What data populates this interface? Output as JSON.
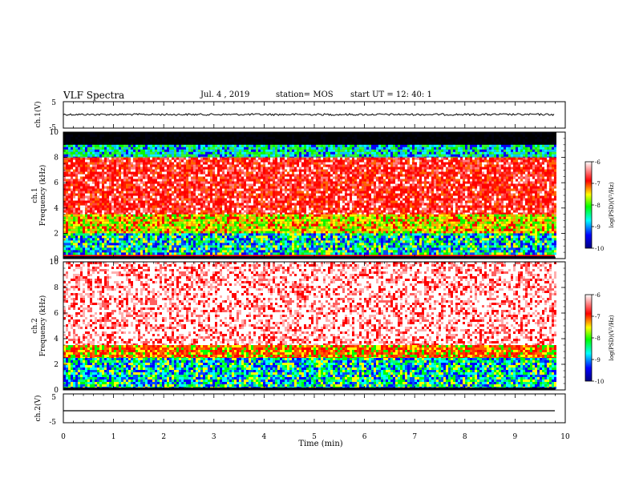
{
  "header": {
    "title": "VLF Spectra",
    "date": "Jul. 4 , 2019",
    "station": "station= MOS",
    "start": "start UT = 12: 40: 1"
  },
  "chart_data": [
    {
      "type": "line",
      "ylabel": "ch.1(V)",
      "ylim": [
        -5,
        5
      ],
      "yticklabels": [
        "5",
        "-5"
      ],
      "baseline": -1.2,
      "description_values": {
        "x_range_min": [
          0,
          9.85
        ]
      }
    },
    {
      "type": "heatmap",
      "ylabel_line1": "ch.1",
      "ylabel_line2": "Frequency (kHz)",
      "ylim": [
        0,
        10
      ],
      "yticklabels": [
        "0",
        "2",
        "4",
        "6",
        "8",
        "10"
      ],
      "colorbar": {
        "label": "log(PSD)(V²/Hz)",
        "range": [
          -10,
          -6
        ],
        "ticklabels": [
          "-6",
          "-7",
          "-8",
          "-9",
          "-10"
        ]
      },
      "bands_khz": [
        {
          "from": 9.0,
          "to": 10.0,
          "level": "black"
        },
        {
          "from": 8.0,
          "to": 9.0,
          "level": "blue-green"
        },
        {
          "from": 3.5,
          "to": 8.0,
          "level": "red"
        },
        {
          "from": 2.0,
          "to": 3.5,
          "level": "yellow-green"
        },
        {
          "from": 0.3,
          "to": 2.0,
          "level": "green-blue"
        }
      ]
    },
    {
      "type": "heatmap",
      "ylabel_line1": "ch.2",
      "ylabel_line2": "Frequency (kHz)",
      "ylim": [
        0,
        10
      ],
      "yticklabels": [
        "0",
        "2",
        "4",
        "6",
        "8",
        "10"
      ],
      "colorbar": {
        "label": "log(PSD)(V²/Hz)",
        "range": [
          -10,
          -6
        ],
        "ticklabels": [
          "-6",
          "-7",
          "-8",
          "-9",
          "-10"
        ]
      },
      "bands_khz": [
        {
          "from": 3.5,
          "to": 10.0,
          "level": "white-red"
        },
        {
          "from": 2.5,
          "to": 3.5,
          "level": "red-yellow"
        },
        {
          "from": 0.2,
          "to": 2.5,
          "level": "green-blue"
        }
      ]
    },
    {
      "type": "line",
      "ylabel": "ch.2(V)",
      "ylim": [
        -5,
        5
      ],
      "yticklabels": [
        "5",
        "-5"
      ],
      "baseline": -1.0
    }
  ],
  "xaxis": {
    "label": "Time (min)",
    "range": [
      0,
      10
    ],
    "ticklabels": [
      "0",
      "1",
      "2",
      "3",
      "4",
      "5",
      "6",
      "7",
      "8",
      "9",
      "10"
    ]
  },
  "colors": {
    "colormap": [
      "#000080",
      "#0000ff",
      "#00ffff",
      "#00ff00",
      "#ffff00",
      "#ff0000",
      "#ffffff"
    ]
  }
}
